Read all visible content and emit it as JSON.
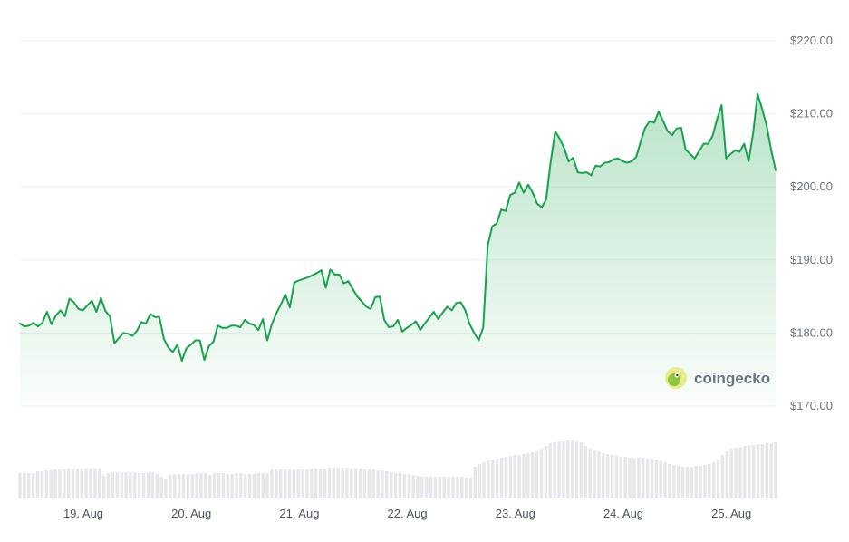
{
  "chart_data": {
    "type": "area",
    "title": "",
    "xlabel": "",
    "ylabel": "",
    "ylim": [
      170,
      220
    ],
    "y_ticks": [
      "$170.00",
      "$180.00",
      "$190.00",
      "$200.00",
      "$210.00",
      "$220.00"
    ],
    "x_ticks": [
      "19. Aug",
      "20. Aug",
      "21. Aug",
      "22. Aug",
      "23. Aug",
      "24. Aug",
      "25. Aug"
    ],
    "grid": true,
    "colors": {
      "line": "#16a34a",
      "fill": "#16a34a",
      "volume": "#e5e7eb",
      "grid": "#eef0f3"
    },
    "watermark": "coingecko",
    "series": [
      {
        "values": [
          181.3,
          180.9,
          181.0,
          181.4,
          180.9,
          181.4,
          182.9,
          181.2,
          182.4,
          183.1,
          182.3,
          184.7,
          184.2,
          183.3,
          183.1,
          183.8,
          184.4,
          182.9,
          184.8,
          183.0,
          182.3,
          178.6,
          179.3,
          180.0,
          179.9,
          179.6,
          180.3,
          181.5,
          181.3,
          182.6,
          182.2,
          182.2,
          179.2,
          178.0,
          177.4,
          178.4,
          176.2,
          177.9,
          178.4,
          179.0,
          179.0,
          176.3,
          178.2,
          178.8,
          181.0,
          180.7,
          180.7,
          181.0,
          181.0,
          180.8,
          181.8,
          181.3,
          181.1,
          180.4,
          181.9,
          179.0,
          181.2,
          182.7,
          183.9,
          185.3,
          183.5,
          186.9,
          187.2,
          187.4,
          187.6,
          187.9,
          188.2,
          188.6,
          186.2,
          188.7,
          188.0,
          188.0,
          186.8,
          187.1,
          186.0,
          185.0,
          184.3,
          183.6,
          183.3,
          184.9,
          185.0,
          181.8,
          180.8,
          180.9,
          181.8,
          180.2,
          180.7,
          181.1,
          181.6,
          180.4,
          181.3,
          182.1,
          182.9,
          181.9,
          182.8,
          183.6,
          183.1,
          184.1,
          184.2,
          183.1,
          181.2,
          180.0,
          179.0,
          180.8,
          192.0,
          194.6,
          195.0,
          196.9,
          196.7,
          198.9,
          199.2,
          200.6,
          199.2,
          200.3,
          199.2,
          197.7,
          197.2,
          198.3,
          203.5,
          207.6,
          206.6,
          205.3,
          203.5,
          204.0,
          202.0,
          201.9,
          202.0,
          201.6,
          202.9,
          202.8,
          203.3,
          203.4,
          203.8,
          203.9,
          203.5,
          203.3,
          203.5,
          204.1,
          206.2,
          208.1,
          209.0,
          208.8,
          210.3,
          209.0,
          207.6,
          207.1,
          208.0,
          208.1,
          205.1,
          204.5,
          203.9,
          204.9,
          205.9,
          205.9,
          207.0,
          209.3,
          211.2,
          203.9,
          204.5,
          205.0,
          204.8,
          205.9,
          203.5,
          207.4,
          212.7,
          210.7,
          208.4,
          205.1,
          202.3
        ]
      }
    ],
    "volume": {
      "values": [
        0.28,
        0.28,
        0.28,
        0.28,
        0.3,
        0.3,
        0.31,
        0.31,
        0.32,
        0.32,
        0.32,
        0.33,
        0.33,
        0.33,
        0.33,
        0.33,
        0.33,
        0.33,
        0.33,
        0.25,
        0.28,
        0.29,
        0.29,
        0.29,
        0.29,
        0.29,
        0.29,
        0.28,
        0.28,
        0.29,
        0.29,
        0.27,
        0.24,
        0.22,
        0.26,
        0.27,
        0.27,
        0.27,
        0.27,
        0.27,
        0.28,
        0.28,
        0.28,
        0.26,
        0.28,
        0.28,
        0.28,
        0.27,
        0.27,
        0.28,
        0.28,
        0.27,
        0.27,
        0.27,
        0.28,
        0.28,
        0.28,
        0.32,
        0.32,
        0.32,
        0.32,
        0.32,
        0.32,
        0.32,
        0.32,
        0.32,
        0.33,
        0.33,
        0.33,
        0.33,
        0.34,
        0.34,
        0.34,
        0.34,
        0.34,
        0.33,
        0.33,
        0.33,
        0.32,
        0.32,
        0.32,
        0.31,
        0.31,
        0.3,
        0.29,
        0.28,
        0.28,
        0.27,
        0.27,
        0.26,
        0.25,
        0.24,
        0.24,
        0.24,
        0.24,
        0.24,
        0.24,
        0.24,
        0.24,
        0.24,
        0.24,
        0.23,
        0.23,
        0.35,
        0.38,
        0.4,
        0.42,
        0.43,
        0.44,
        0.45,
        0.46,
        0.47,
        0.48,
        0.48,
        0.49,
        0.5,
        0.51,
        0.52,
        0.55,
        0.58,
        0.61,
        0.62,
        0.63,
        0.63,
        0.64,
        0.64,
        0.63,
        0.62,
        0.58,
        0.55,
        0.53,
        0.52,
        0.5,
        0.49,
        0.48,
        0.47,
        0.46,
        0.46,
        0.45,
        0.45,
        0.45,
        0.45,
        0.44,
        0.44,
        0.43,
        0.42,
        0.4,
        0.38,
        0.37,
        0.36,
        0.35,
        0.35,
        0.35,
        0.36,
        0.36,
        0.37,
        0.38,
        0.4,
        0.43,
        0.48,
        0.52,
        0.55,
        0.56,
        0.57,
        0.58,
        0.59,
        0.59,
        0.6,
        0.6,
        0.61,
        0.61,
        0.62
      ]
    }
  }
}
